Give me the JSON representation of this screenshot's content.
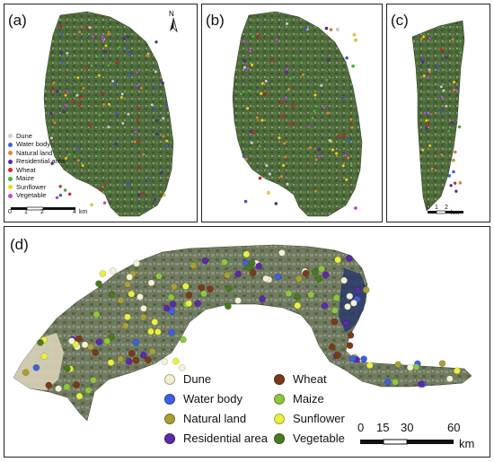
{
  "panels": {
    "a": "(a)",
    "b": "(b)",
    "c": "(c)",
    "d": "(d)"
  },
  "north_label": "N",
  "legend": [
    {
      "label": "Dune",
      "color": "#f3f1d2"
    },
    {
      "label": "Water body",
      "color": "#3f5fe0"
    },
    {
      "label": "Natural land",
      "color": "#a8a035"
    },
    {
      "label": "Residential area",
      "color": "#5a2aa8"
    },
    {
      "label": "Wheat",
      "color": "#7a3a1a"
    },
    {
      "label": "Maize",
      "color": "#8ec63f"
    },
    {
      "label": "Sunflower",
      "color": "#e8f040"
    },
    {
      "label": "Vegetable",
      "color": "#4a7a1f"
    }
  ],
  "small_legend": [
    {
      "label": "Dune",
      "color": "#cfcfcf"
    },
    {
      "label": "Water body",
      "color": "#3f5fe0"
    },
    {
      "label": "Natural land",
      "color": "#e08a2a"
    },
    {
      "label": "Residential area",
      "color": "#5a2aa8"
    },
    {
      "label": "Wheat",
      "color": "#d42a2a"
    },
    {
      "label": "Maize",
      "color": "#4ab83a"
    },
    {
      "label": "Sunflower",
      "color": "#f2d21a"
    },
    {
      "label": "Vegetable",
      "color": "#c24ad8"
    }
  ],
  "scale_a": {
    "ticks": [
      "0",
      "1",
      "2",
      "4"
    ],
    "unit": "km"
  },
  "scale_c": {
    "ticks": [
      "0",
      "1",
      "2"
    ],
    "unit": "km"
  },
  "scale_d": {
    "ticks": [
      "0",
      "15",
      "30",
      "60"
    ],
    "unit": "km"
  },
  "map_colors": {
    "vegetation": "#4f6b3a",
    "dune": "#d8d2b8",
    "water": "#2a3a6a"
  }
}
